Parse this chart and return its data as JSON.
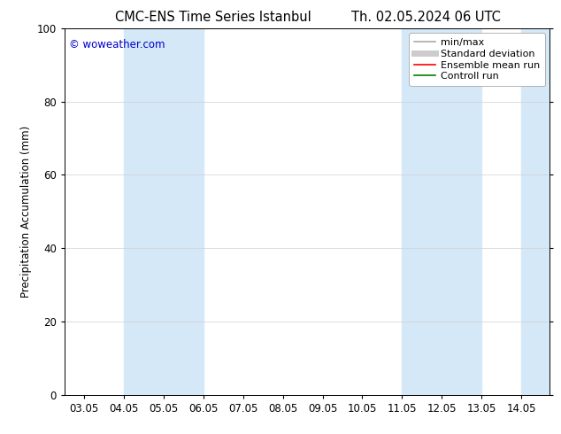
{
  "title_left": "CMC-ENS Time Series Istanbul",
  "title_right": "Th. 02.05.2024 06 UTC",
  "ylabel": "Precipitation Accumulation (mm)",
  "ylim": [
    0,
    100
  ],
  "yticks": [
    0,
    20,
    40,
    60,
    80,
    100
  ],
  "xlim_start": 2.5,
  "xlim_end": 14.72,
  "xtick_labels": [
    "03.05",
    "04.05",
    "05.05",
    "06.05",
    "07.05",
    "08.05",
    "09.05",
    "10.05",
    "11.05",
    "12.05",
    "13.05",
    "14.05"
  ],
  "xtick_positions": [
    3.0,
    4.0,
    5.0,
    6.0,
    7.0,
    8.0,
    9.0,
    10.0,
    11.0,
    12.0,
    13.0,
    14.0
  ],
  "shaded_bands": [
    {
      "x_start": 4.0,
      "x_end": 6.0,
      "color": "#d4e8f8"
    },
    {
      "x_start": 11.0,
      "x_end": 13.0,
      "color": "#d4e8f8"
    },
    {
      "x_start": 14.0,
      "x_end": 14.72,
      "color": "#d4e8f8"
    }
  ],
  "watermark_text": "© woweather.com",
  "watermark_color": "#0000cc",
  "legend_entries": [
    {
      "label": "min/max",
      "color": "#aaaaaa",
      "lw": 1.2,
      "style": "solid"
    },
    {
      "label": "Standard deviation",
      "color": "#cccccc",
      "lw": 5,
      "style": "solid"
    },
    {
      "label": "Ensemble mean run",
      "color": "#ff0000",
      "lw": 1.2,
      "style": "solid"
    },
    {
      "label": "Controll run",
      "color": "#008000",
      "lw": 1.2,
      "style": "solid"
    }
  ],
  "bg_color": "#ffffff",
  "plot_bg_color": "#ffffff",
  "border_color": "#000000",
  "grid_color": "#d0d0d0",
  "font_size": 8.5,
  "title_font_size": 10.5
}
